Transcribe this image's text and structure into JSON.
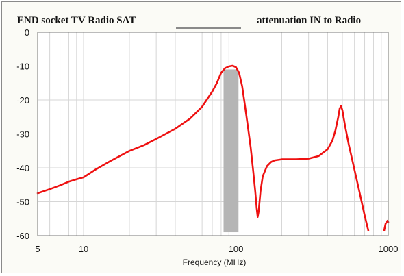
{
  "chart_data": {
    "type": "line",
    "title_left": "END socket TV Radio SAT",
    "title_right": "attenuation IN to Radio",
    "xlabel": "Frequency (MHz)",
    "ylabel": "",
    "x_scale": "log",
    "xlim": [
      5,
      1000
    ],
    "ylim": [
      -60,
      0
    ],
    "x_ticks": [
      5,
      10,
      100,
      1000
    ],
    "x_tick_labels": [
      "5",
      "10",
      "100",
      "1000"
    ],
    "y_ticks": [
      0,
      -10,
      -20,
      -30,
      -40,
      -50,
      -60
    ],
    "y_tick_labels": [
      "0",
      "-10",
      "-20",
      "-30",
      "-40",
      "-50",
      "-60"
    ],
    "grid": true,
    "series": [
      {
        "color": "#ee1111",
        "points": [
          [
            5,
            -47.5
          ],
          [
            6,
            -46.3
          ],
          [
            7,
            -45.2
          ],
          [
            8,
            -44.1
          ],
          [
            9,
            -43.4
          ],
          [
            10,
            -42.8
          ],
          [
            12,
            -40.5
          ],
          [
            15,
            -38
          ],
          [
            20,
            -35
          ],
          [
            25,
            -33.3
          ],
          [
            30,
            -31.5
          ],
          [
            40,
            -28.5
          ],
          [
            50,
            -25.5
          ],
          [
            60,
            -22
          ],
          [
            70,
            -17.5
          ],
          [
            75,
            -15
          ],
          [
            80,
            -12
          ],
          [
            85,
            -10.6
          ],
          [
            90,
            -10.1
          ],
          [
            95,
            -9.9
          ],
          [
            100,
            -10.3
          ],
          [
            105,
            -12
          ],
          [
            110,
            -16
          ],
          [
            115,
            -22
          ],
          [
            120,
            -28
          ],
          [
            125,
            -34
          ],
          [
            130,
            -41
          ],
          [
            134,
            -47
          ],
          [
            137,
            -52
          ],
          [
            139,
            -54.5
          ],
          [
            141,
            -53
          ],
          [
            145,
            -47
          ],
          [
            150,
            -42.5
          ],
          [
            160,
            -39.5
          ],
          [
            170,
            -38.3
          ],
          [
            180,
            -37.8
          ],
          [
            200,
            -37.5
          ],
          [
            250,
            -37.5
          ],
          [
            300,
            -37.3
          ],
          [
            350,
            -36.5
          ],
          [
            400,
            -34.5
          ],
          [
            430,
            -32
          ],
          [
            450,
            -29
          ],
          [
            470,
            -25
          ],
          [
            480,
            -22.5
          ],
          [
            490,
            -21.8
          ],
          [
            500,
            -23
          ],
          [
            520,
            -27.5
          ],
          [
            550,
            -33
          ],
          [
            600,
            -40.5
          ],
          [
            650,
            -47.5
          ],
          [
            700,
            -54
          ],
          [
            740,
            -58.5
          ]
        ]
      },
      {
        "color": "#ee1111",
        "points": [
          [
            940,
            -58.5
          ],
          [
            960,
            -56.5
          ],
          [
            990,
            -55.6
          ],
          [
            1000,
            -56
          ]
        ]
      }
    ],
    "band": {
      "x0": 83,
      "x1": 104,
      "y0": -11,
      "y1": -59,
      "color": "#b5b5b5"
    },
    "legend_swatch_color": "#8a8a8a"
  }
}
